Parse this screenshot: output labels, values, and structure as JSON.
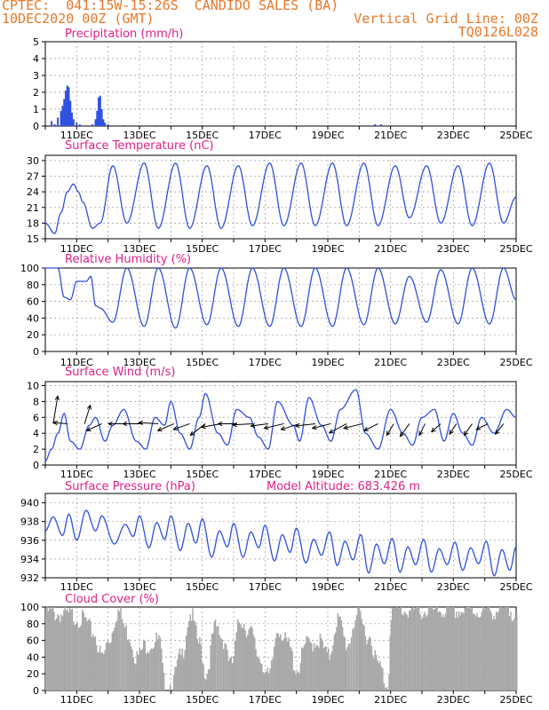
{
  "header": {
    "line1_left": "CPTEC:  041:15W-15:26S  CANDIDO SALES (BA)",
    "line2_left": "10DEC2020 00Z (GMT)",
    "line1_right": "Vertical Grid Line: 00Z",
    "line2_right": "TQ0126L028"
  },
  "colors": {
    "accent": "#e8782a",
    "title": "#e0208a",
    "series": "#3050e0",
    "cloud": "#a8a8a8",
    "grid": "#9a9a9a",
    "arrow": "#000000"
  },
  "chart_data": [
    {
      "type": "bar",
      "title": "Precipitation (mm/h)",
      "x_tick_labels": [
        "11DEC",
        "13DEC",
        "15DEC",
        "17DEC",
        "19DEC",
        "21DEC",
        "23DEC",
        "25DEC"
      ],
      "x_range_days": [
        10,
        25
      ],
      "ylim": [
        0,
        5
      ],
      "yticks": [
        0,
        1,
        2,
        3,
        4,
        5
      ],
      "x": [
        10.2,
        10.3,
        10.4,
        10.5,
        10.55,
        10.6,
        10.65,
        10.7,
        10.75,
        10.8,
        10.85,
        10.9,
        11.0,
        11.1,
        11.5,
        11.6,
        11.65,
        11.7,
        11.75,
        11.8,
        11.85,
        11.9,
        12.0,
        12.5,
        13.5,
        15.0,
        16.0,
        17.2,
        20.5,
        20.7
      ],
      "values": [
        0.3,
        0.1,
        0.5,
        0.9,
        1.2,
        1.6,
        2.1,
        2.4,
        2.3,
        1.5,
        0.8,
        0.4,
        0.2,
        0.1,
        0.1,
        0.4,
        0.9,
        1.7,
        1.8,
        1.0,
        0.4,
        0.2,
        0.1,
        0.05,
        0.05,
        0.05,
        0.05,
        0.05,
        0.1,
        0.1
      ]
    },
    {
      "type": "line",
      "title": "Surface Temperature (nC)",
      "x_tick_labels": [
        "11DEC",
        "13DEC",
        "15DEC",
        "17DEC",
        "19DEC",
        "21DEC",
        "23DEC",
        "25DEC"
      ],
      "ylim": [
        15,
        31
      ],
      "yticks": [
        15,
        18,
        21,
        24,
        27,
        30
      ],
      "minmax": [
        [
          10,
          18
        ],
        [
          10.3,
          16
        ],
        [
          10.5,
          20
        ],
        [
          10.7,
          24
        ],
        [
          10.9,
          25.5
        ],
        [
          11.05,
          24
        ],
        [
          11.2,
          22
        ],
        [
          11.5,
          17
        ],
        [
          11.75,
          18
        ],
        [
          12.15,
          29
        ],
        [
          12.6,
          18
        ],
        [
          13.15,
          29.5
        ],
        [
          13.6,
          17
        ],
        [
          14.15,
          29.5
        ],
        [
          14.6,
          17
        ],
        [
          15.15,
          29
        ],
        [
          15.6,
          17
        ],
        [
          16.15,
          29
        ],
        [
          16.6,
          17.5
        ],
        [
          17.15,
          29.5
        ],
        [
          17.6,
          17.5
        ],
        [
          18.15,
          29.5
        ],
        [
          18.6,
          17.5
        ],
        [
          19.15,
          29.5
        ],
        [
          19.6,
          17.5
        ],
        [
          20.15,
          29.5
        ],
        [
          20.6,
          17.5
        ],
        [
          21.15,
          29
        ],
        [
          21.6,
          19
        ],
        [
          22.15,
          29
        ],
        [
          22.6,
          18
        ],
        [
          23.15,
          29
        ],
        [
          23.6,
          17.5
        ],
        [
          24.15,
          29.5
        ],
        [
          24.6,
          18
        ],
        [
          25,
          23
        ]
      ]
    },
    {
      "type": "line",
      "title": "Relative Humidity (%)",
      "x_tick_labels": [
        "11DEC",
        "13DEC",
        "15DEC",
        "17DEC",
        "19DEC",
        "21DEC",
        "23DEC",
        "25DEC"
      ],
      "ylim": [
        0,
        100
      ],
      "yticks": [
        0,
        20,
        40,
        60,
        80,
        100
      ],
      "minmax": [
        [
          10,
          100
        ],
        [
          10.4,
          100
        ],
        [
          10.6,
          65
        ],
        [
          10.8,
          62
        ],
        [
          11.0,
          84
        ],
        [
          11.3,
          84
        ],
        [
          11.45,
          90
        ],
        [
          11.6,
          55
        ],
        [
          11.75,
          52
        ],
        [
          12.15,
          35
        ],
        [
          12.6,
          100
        ],
        [
          13.15,
          30
        ],
        [
          13.6,
          100
        ],
        [
          14.15,
          28
        ],
        [
          14.6,
          100
        ],
        [
          15.15,
          32
        ],
        [
          15.6,
          100
        ],
        [
          16.15,
          30
        ],
        [
          16.6,
          100
        ],
        [
          17.15,
          30
        ],
        [
          17.6,
          100
        ],
        [
          18.15,
          30
        ],
        [
          18.6,
          100
        ],
        [
          19.15,
          30
        ],
        [
          19.6,
          100
        ],
        [
          20.15,
          32
        ],
        [
          20.6,
          100
        ],
        [
          21.15,
          33
        ],
        [
          21.6,
          90
        ],
        [
          22.15,
          35
        ],
        [
          22.6,
          98
        ],
        [
          23.15,
          33
        ],
        [
          23.6,
          100
        ],
        [
          24.15,
          33
        ],
        [
          24.6,
          100
        ],
        [
          25,
          62
        ]
      ]
    },
    {
      "type": "line",
      "title": "Surface Wind (m/s)",
      "x_tick_labels": [
        "11DEC",
        "13DEC",
        "15DEC",
        "17DEC",
        "19DEC",
        "21DEC",
        "23DEC",
        "25DEC"
      ],
      "ylim": [
        0,
        10.5
      ],
      "yticks": [
        0,
        2,
        4,
        6,
        8,
        10
      ],
      "minmax": [
        [
          10,
          0.5
        ],
        [
          10.2,
          2
        ],
        [
          10.4,
          4
        ],
        [
          10.6,
          6.5
        ],
        [
          10.8,
          3
        ],
        [
          11.1,
          2
        ],
        [
          11.4,
          5
        ],
        [
          11.6,
          6
        ],
        [
          11.9,
          3
        ],
        [
          12.15,
          5
        ],
        [
          12.5,
          7
        ],
        [
          12.9,
          3
        ],
        [
          13.2,
          2
        ],
        [
          13.5,
          6
        ],
        [
          13.8,
          5
        ],
        [
          14.0,
          8
        ],
        [
          14.3,
          4
        ],
        [
          14.6,
          2
        ],
        [
          14.9,
          6
        ],
        [
          15.1,
          9
        ],
        [
          15.5,
          4
        ],
        [
          15.8,
          2.5
        ],
        [
          16.1,
          7
        ],
        [
          16.5,
          6
        ],
        [
          16.8,
          3.5
        ],
        [
          17.1,
          2
        ],
        [
          17.4,
          8
        ],
        [
          17.9,
          5
        ],
        [
          18.1,
          3
        ],
        [
          18.4,
          8.5
        ],
        [
          18.8,
          5
        ],
        [
          19.1,
          3
        ],
        [
          19.4,
          7
        ],
        [
          19.9,
          9.5
        ],
        [
          20.2,
          4
        ],
        [
          20.6,
          2
        ],
        [
          21.0,
          7
        ],
        [
          21.4,
          4
        ],
        [
          21.7,
          2.5
        ],
        [
          22.0,
          6
        ],
        [
          22.4,
          7
        ],
        [
          22.7,
          3
        ],
        [
          23.0,
          6.5
        ],
        [
          23.3,
          4
        ],
        [
          23.6,
          2.5
        ],
        [
          23.9,
          6
        ],
        [
          24.3,
          4
        ],
        [
          24.7,
          7
        ],
        [
          25,
          6
        ]
      ],
      "arrows": [
        {
          "day": 10.25,
          "u": 0.4,
          "v": 2.4
        },
        {
          "day": 10.7,
          "u": -1.2,
          "v": 0.1
        },
        {
          "day": 11.25,
          "u": 0.5,
          "v": 1.6
        },
        {
          "day": 11.8,
          "u": -1.3,
          "v": -0.6
        },
        {
          "day": 12.6,
          "u": -1.6,
          "v": 0
        },
        {
          "day": 13.1,
          "u": -1.7,
          "v": 0
        },
        {
          "day": 13.6,
          "u": -1.7,
          "v": 0.1
        },
        {
          "day": 14.1,
          "u": -1.4,
          "v": -0.6
        },
        {
          "day": 14.6,
          "u": -1.4,
          "v": -0.5
        },
        {
          "day": 15.1,
          "u": -1.3,
          "v": -1.0
        },
        {
          "day": 15.6,
          "u": -1.7,
          "v": -0.3
        },
        {
          "day": 16.1,
          "u": -1.6,
          "v": 0.0
        },
        {
          "day": 16.6,
          "u": -1.7,
          "v": -0.1
        },
        {
          "day": 17.1,
          "u": -1.5,
          "v": -0.2
        },
        {
          "day": 17.6,
          "u": -1.7,
          "v": -0.4
        },
        {
          "day": 18.1,
          "u": -1.6,
          "v": -0.5
        },
        {
          "day": 18.6,
          "u": -1.7,
          "v": -0.2
        },
        {
          "day": 19.1,
          "u": -1.6,
          "v": -0.4
        },
        {
          "day": 19.6,
          "u": -1.5,
          "v": -0.8
        },
        {
          "day": 20.1,
          "u": -1.6,
          "v": -0.4
        },
        {
          "day": 20.6,
          "u": -1.2,
          "v": -0.6
        },
        {
          "day": 21.1,
          "u": -0.6,
          "v": -1.0
        },
        {
          "day": 21.6,
          "u": -0.8,
          "v": -1.1
        },
        {
          "day": 22.1,
          "u": -0.5,
          "v": -1.0
        },
        {
          "day": 22.6,
          "u": -0.8,
          "v": -0.7
        },
        {
          "day": 23.1,
          "u": -0.6,
          "v": -0.9
        },
        {
          "day": 23.6,
          "u": -0.7,
          "v": -1.0
        },
        {
          "day": 24.1,
          "u": -1.0,
          "v": -0.5
        },
        {
          "day": 24.6,
          "u": -0.7,
          "v": -0.9
        }
      ]
    },
    {
      "type": "line",
      "title": "Surface Pressure (hPa)",
      "extra_label": "Model Altitude: 683.426 m",
      "x_tick_labels": [
        "11DEC",
        "13DEC",
        "15DEC",
        "17DEC",
        "19DEC",
        "21DEC",
        "23DEC",
        "25DEC"
      ],
      "ylim": [
        932,
        941
      ],
      "yticks": [
        932,
        934,
        936,
        938,
        940
      ],
      "minmax": [
        [
          10,
          937
        ],
        [
          10.25,
          938.5
        ],
        [
          10.55,
          936.5
        ],
        [
          10.75,
          938.8
        ],
        [
          11.0,
          936
        ],
        [
          11.3,
          939.2
        ],
        [
          11.6,
          937
        ],
        [
          11.8,
          938.6
        ],
        [
          12.2,
          935.6
        ],
        [
          12.55,
          937.7
        ],
        [
          12.8,
          936.4
        ],
        [
          13.0,
          938.6
        ],
        [
          13.3,
          935.2
        ],
        [
          13.55,
          937.9
        ],
        [
          13.8,
          936.1
        ],
        [
          14.0,
          938.6
        ],
        [
          14.3,
          934.9
        ],
        [
          14.55,
          937.8
        ],
        [
          14.8,
          935.7
        ],
        [
          15.0,
          938.3
        ],
        [
          15.3,
          934.2
        ],
        [
          15.55,
          937
        ],
        [
          15.8,
          935.3
        ],
        [
          16.0,
          937.8
        ],
        [
          16.3,
          934.2
        ],
        [
          16.55,
          936.9
        ],
        [
          16.8,
          935.2
        ],
        [
          17.0,
          937.6
        ],
        [
          17.3,
          933.8
        ],
        [
          17.55,
          936.6
        ],
        [
          17.8,
          934.7
        ],
        [
          18.0,
          937.3
        ],
        [
          18.3,
          933.6
        ],
        [
          18.55,
          936.1
        ],
        [
          18.8,
          934.4
        ],
        [
          19.05,
          936.9
        ],
        [
          19.3,
          933.3
        ],
        [
          19.55,
          935.9
        ],
        [
          19.8,
          933.9
        ],
        [
          20.05,
          936.6
        ],
        [
          20.3,
          932.5
        ],
        [
          20.55,
          935.6
        ],
        [
          20.8,
          933.5
        ],
        [
          21.05,
          936.2
        ],
        [
          21.3,
          932.6
        ],
        [
          21.55,
          935.3
        ],
        [
          21.8,
          933.4
        ],
        [
          22.05,
          936.1
        ],
        [
          22.3,
          932.6
        ],
        [
          22.55,
          935.1
        ],
        [
          22.8,
          933.4
        ],
        [
          23.05,
          935.8
        ],
        [
          23.3,
          932.8
        ],
        [
          23.55,
          935.2
        ],
        [
          23.8,
          933.5
        ],
        [
          24.05,
          935.9
        ],
        [
          24.3,
          932.2
        ],
        [
          24.55,
          935.0
        ],
        [
          24.8,
          932.8
        ],
        [
          25,
          935.3
        ]
      ]
    },
    {
      "type": "bar",
      "title": "Cloud Cover (%)",
      "x_tick_labels": [
        "11DEC",
        "13DEC",
        "15DEC",
        "17DEC",
        "19DEC",
        "21DEC",
        "23DEC",
        "25DEC"
      ],
      "ylim": [
        0,
        100
      ],
      "yticks": [
        0,
        20,
        40,
        60,
        80,
        100
      ],
      "profile": [
        [
          10,
          95
        ],
        [
          10.3,
          92
        ],
        [
          10.8,
          90
        ],
        [
          11.2,
          85
        ],
        [
          11.5,
          70
        ],
        [
          11.8,
          40
        ],
        [
          12.0,
          60
        ],
        [
          12.3,
          95
        ],
        [
          12.6,
          70
        ],
        [
          12.9,
          40
        ],
        [
          13.2,
          55
        ],
        [
          13.6,
          60
        ],
        [
          13.8,
          5
        ],
        [
          14.0,
          8
        ],
        [
          14.3,
          40
        ],
        [
          14.6,
          92
        ],
        [
          14.9,
          55
        ],
        [
          15.1,
          20
        ],
        [
          15.4,
          75
        ],
        [
          15.7,
          60
        ],
        [
          15.9,
          30
        ],
        [
          16.2,
          85
        ],
        [
          16.5,
          70
        ],
        [
          16.8,
          40
        ],
        [
          17.1,
          15
        ],
        [
          17.4,
          75
        ],
        [
          17.7,
          55
        ],
        [
          18.0,
          25
        ],
        [
          18.3,
          55
        ],
        [
          18.7,
          60
        ],
        [
          19.0,
          40
        ],
        [
          19.3,
          85
        ],
        [
          19.6,
          55
        ],
        [
          19.9,
          90
        ],
        [
          20.3,
          65
        ],
        [
          20.6,
          30
        ],
        [
          20.9,
          5
        ],
        [
          21.0,
          95
        ],
        [
          21.5,
          96
        ],
        [
          22,
          95
        ],
        [
          22.5,
          96
        ],
        [
          23,
          95
        ],
        [
          23.5,
          96
        ],
        [
          24,
          95
        ],
        [
          24.5,
          96
        ],
        [
          25,
          95
        ]
      ]
    }
  ]
}
